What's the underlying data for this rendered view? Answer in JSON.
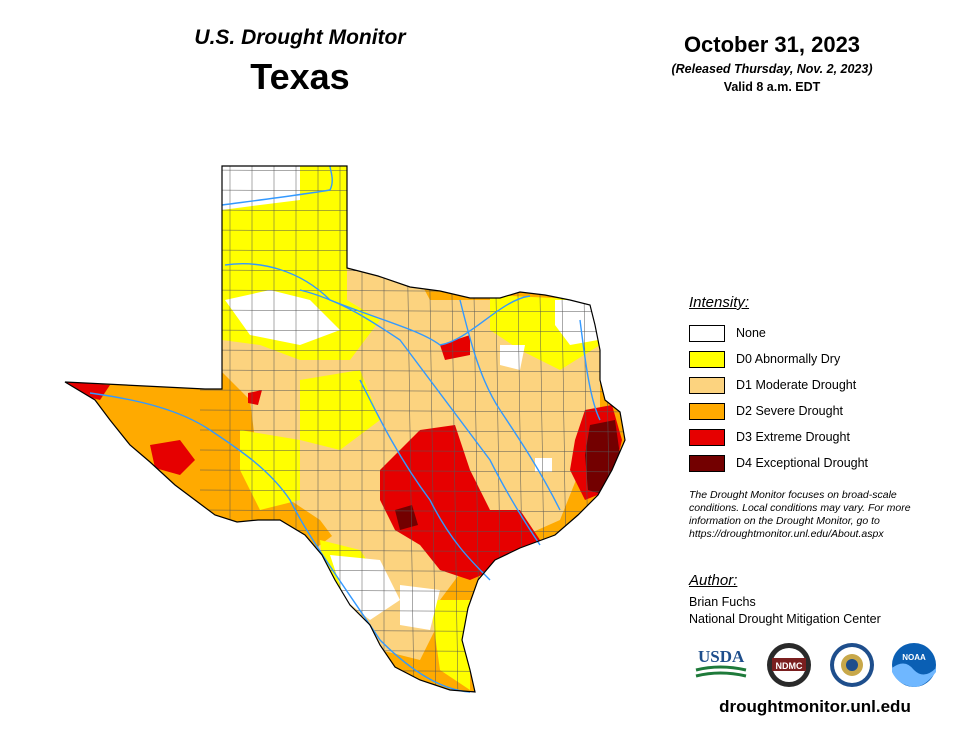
{
  "header": {
    "brand": "U.S. Drought Monitor",
    "state": "Texas",
    "date": "October 31, 2023",
    "released": "(Released Thursday, Nov. 2, 2023)",
    "valid": "Valid 8 a.m. EDT"
  },
  "legend": {
    "title": "Intensity:",
    "items": [
      {
        "label": "None",
        "color": "#ffffff"
      },
      {
        "label": "D0 Abnormally Dry",
        "color": "#ffff00"
      },
      {
        "label": "D1 Moderate Drought",
        "color": "#fcd37f"
      },
      {
        "label": "D2 Severe Drought",
        "color": "#ffaa00"
      },
      {
        "label": "D3 Extreme Drought",
        "color": "#e60000"
      },
      {
        "label": "D4 Exceptional Drought",
        "color": "#730000"
      }
    ]
  },
  "disclaimer": "The Drought Monitor focuses on broad-scale conditions. Local conditions may vary. For more information on the Drought Monitor, go to https://droughtmonitor.unl.edu/About.aspx",
  "author": {
    "title": "Author:",
    "name": "Brian Fuchs",
    "org": "National Drought Mitigation Center"
  },
  "logos": {
    "usda": "USDA",
    "ndmc": "NDMC",
    "noaa": "NOAA"
  },
  "website": "droughtmonitor.unl.edu",
  "colors": {
    "river": "#3399ff",
    "county_line": "#555555"
  }
}
